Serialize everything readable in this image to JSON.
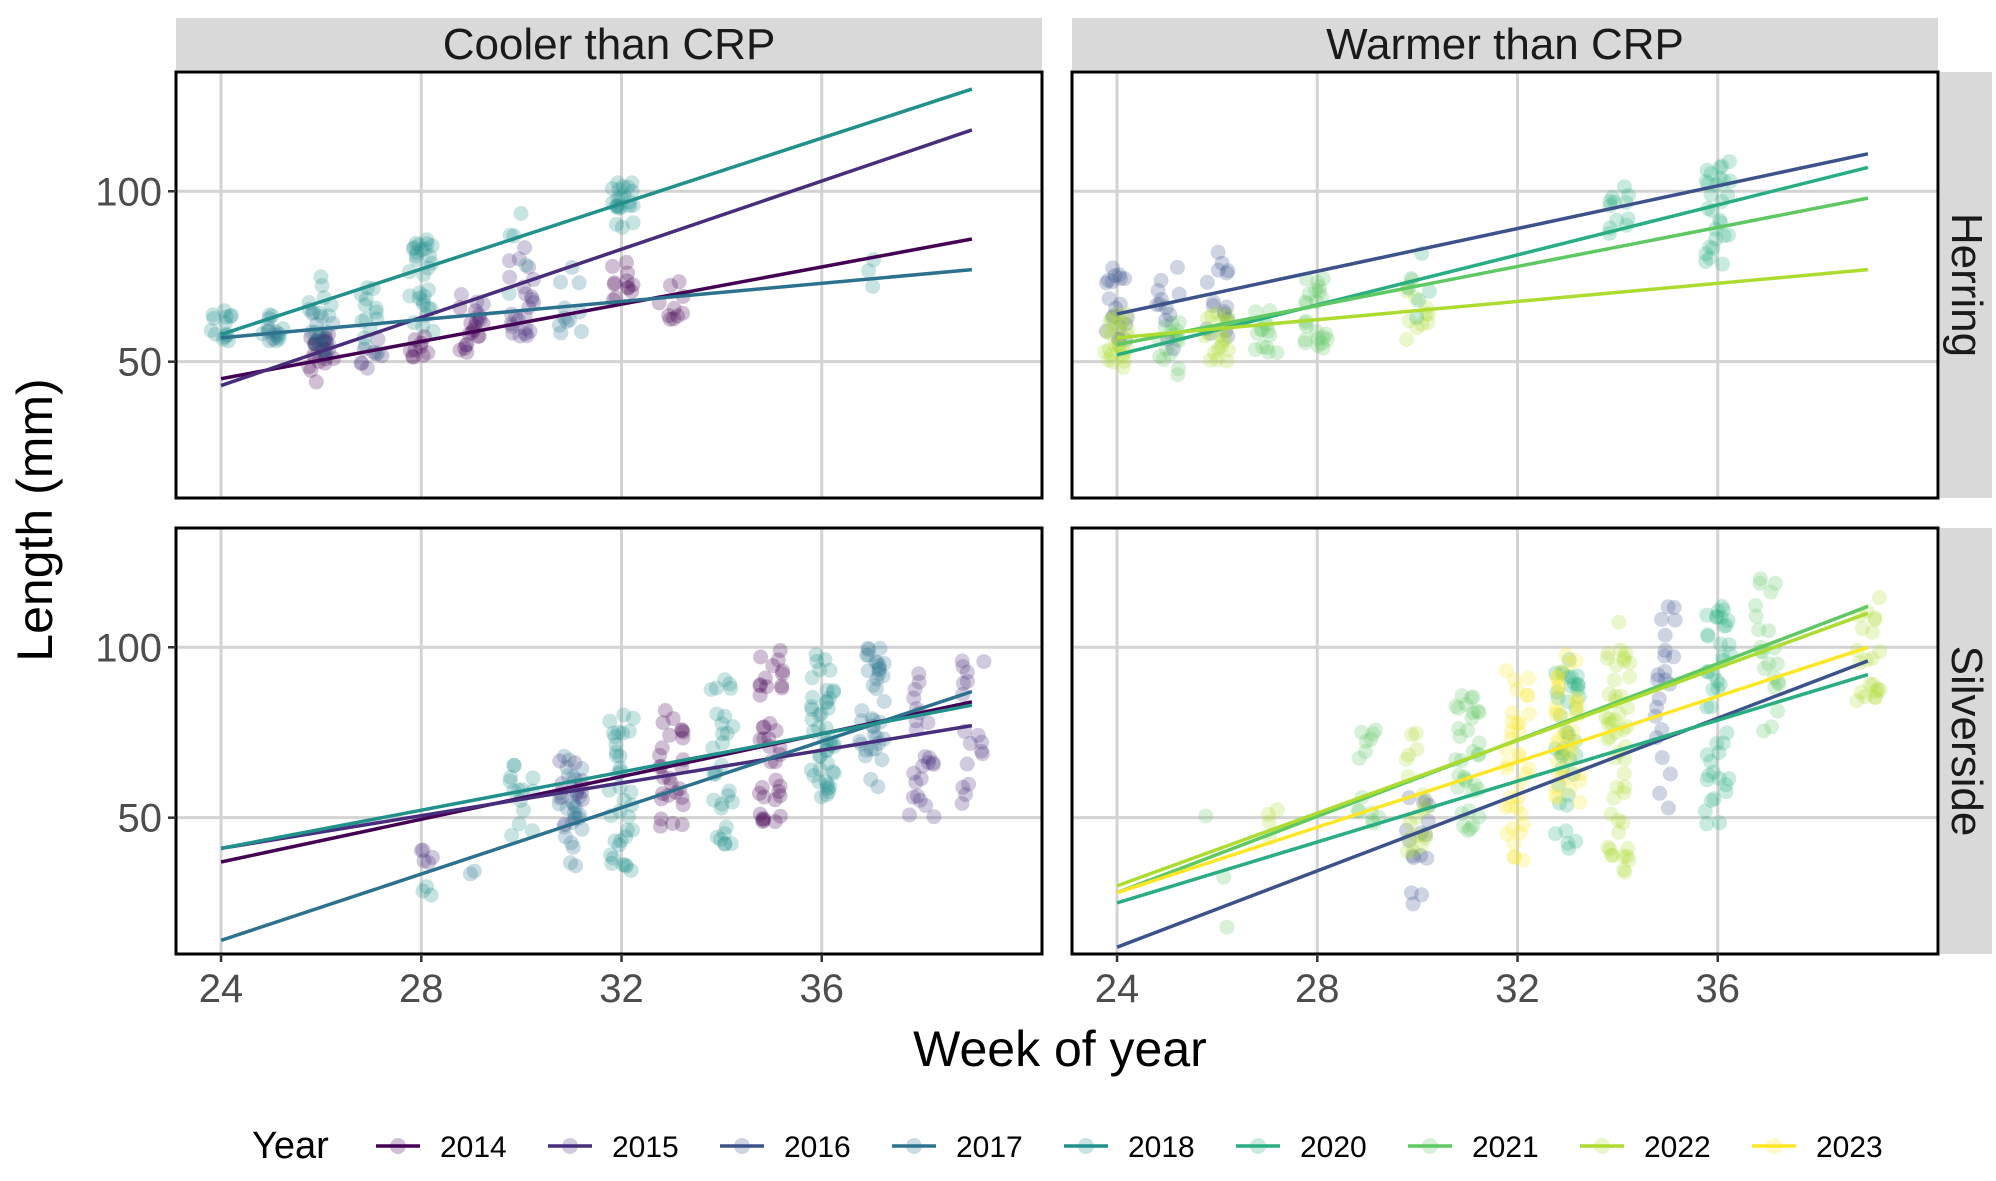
{
  "chart_data": {
    "type": "scatter",
    "xlabel": "Week of year",
    "ylabel": "Length (mm)",
    "legend": {
      "title": "Year",
      "placement": "bottom",
      "entries": [
        {
          "label": "2014",
          "color": "#440154"
        },
        {
          "label": "2015",
          "color": "#472d7b"
        },
        {
          "label": "2016",
          "color": "#3b528b"
        },
        {
          "label": "2017",
          "color": "#2c728e"
        },
        {
          "label": "2018",
          "color": "#21918c"
        },
        {
          "label": "2020",
          "color": "#28ae80"
        },
        {
          "label": "2021",
          "color": "#5ec962"
        },
        {
          "label": "2022",
          "color": "#addc30"
        },
        {
          "label": "2023",
          "color": "#fde725"
        }
      ]
    },
    "facet_columns": [
      "Cooler than CRP",
      "Warmer than CRP"
    ],
    "facet_rows": [
      "Herring",
      "Silverside"
    ],
    "x_ticks": [
      24,
      28,
      32,
      36
    ],
    "y_ticks": [
      50,
      100
    ],
    "xlim": [
      23.1,
      40.4
    ],
    "ylim": [
      10,
      135
    ],
    "grid": true,
    "panels": [
      {
        "column": "Cooler than CRP",
        "row": "Herring",
        "lines": [
          {
            "year": "2014",
            "x": [
              24,
              39
            ],
            "y": [
              45,
              86
            ]
          },
          {
            "year": "2015",
            "x": [
              24,
              39
            ],
            "y": [
              43,
              118
            ]
          },
          {
            "year": "2017",
            "x": [
              24,
              39
            ],
            "y": [
              57,
              77
            ]
          },
          {
            "year": "2018",
            "x": [
              24,
              39
            ],
            "y": [
              58,
              130
            ]
          }
        ],
        "clusters": [
          {
            "year": "2018",
            "week": 24,
            "min": 54,
            "max": 65,
            "n": 14
          },
          {
            "year": "2018",
            "week": 25,
            "min": 55,
            "max": 65,
            "n": 10
          },
          {
            "year": "2017",
            "week": 25,
            "min": 56,
            "max": 63,
            "n": 6
          },
          {
            "year": "2018",
            "week": 26,
            "min": 52,
            "max": 76,
            "n": 14
          },
          {
            "year": "2014",
            "week": 26,
            "min": 44,
            "max": 58,
            "n": 22
          },
          {
            "year": "2017",
            "week": 26,
            "min": 50,
            "max": 66,
            "n": 12
          },
          {
            "year": "2015",
            "week": 27,
            "min": 48,
            "max": 60,
            "n": 8
          },
          {
            "year": "2018",
            "week": 27,
            "min": 52,
            "max": 72,
            "n": 14
          },
          {
            "year": "2018",
            "week": 28,
            "min": 58,
            "max": 86,
            "n": 30
          },
          {
            "year": "2014",
            "week": 28,
            "min": 51,
            "max": 58,
            "n": 10
          },
          {
            "year": "2014",
            "week": 29,
            "min": 51,
            "max": 66,
            "n": 16
          },
          {
            "year": "2015",
            "week": 29,
            "min": 55,
            "max": 70,
            "n": 6
          },
          {
            "year": "2015",
            "week": 30,
            "min": 56,
            "max": 84,
            "n": 24
          },
          {
            "year": "2018",
            "week": 30,
            "min": 66,
            "max": 96,
            "n": 5
          },
          {
            "year": "2017",
            "week": 31,
            "min": 58,
            "max": 68,
            "n": 8
          },
          {
            "year": "2017",
            "week": 31,
            "min": 72,
            "max": 78,
            "n": 3
          },
          {
            "year": "2018",
            "week": 32,
            "min": 89,
            "max": 103,
            "n": 22
          },
          {
            "year": "2014",
            "week": 32,
            "min": 68,
            "max": 80,
            "n": 12
          },
          {
            "year": "2014",
            "week": 33,
            "min": 62,
            "max": 76,
            "n": 10
          },
          {
            "year": "2018",
            "week": 37,
            "min": 72,
            "max": 82,
            "n": 3
          }
        ]
      },
      {
        "column": "Warmer than CRP",
        "row": "Herring",
        "lines": [
          {
            "year": "2016",
            "x": [
              24,
              39
            ],
            "y": [
              64,
              111
            ]
          },
          {
            "year": "2020",
            "x": [
              24,
              39
            ],
            "y": [
              52,
              107
            ]
          },
          {
            "year": "2021",
            "x": [
              24,
              39
            ],
            "y": [
              55,
              98
            ]
          },
          {
            "year": "2022",
            "x": [
              24,
              39
            ],
            "y": [
              57,
              77
            ]
          }
        ],
        "clusters": [
          {
            "year": "2016",
            "week": 24,
            "min": 56,
            "max": 78,
            "n": 20
          },
          {
            "year": "2022",
            "week": 24,
            "min": 48,
            "max": 64,
            "n": 24
          },
          {
            "year": "2021",
            "week": 25,
            "min": 46,
            "max": 62,
            "n": 16
          },
          {
            "year": "2016",
            "week": 25,
            "min": 52,
            "max": 80,
            "n": 12
          },
          {
            "year": "2016",
            "week": 26,
            "min": 56,
            "max": 83,
            "n": 16
          },
          {
            "year": "2022",
            "week": 26,
            "min": 50,
            "max": 66,
            "n": 20
          },
          {
            "year": "2021",
            "week": 27,
            "min": 50,
            "max": 66,
            "n": 14
          },
          {
            "year": "2021",
            "week": 28,
            "min": 54,
            "max": 77,
            "n": 24
          },
          {
            "year": "2022",
            "week": 30,
            "min": 56,
            "max": 76,
            "n": 12
          },
          {
            "year": "2020",
            "week": 30,
            "min": 62,
            "max": 84,
            "n": 6
          },
          {
            "year": "2020",
            "week": 34,
            "min": 87,
            "max": 102,
            "n": 12
          },
          {
            "year": "2020",
            "week": 36,
            "min": 78,
            "max": 110,
            "n": 28
          }
        ]
      },
      {
        "column": "Cooler than CRP",
        "row": "Silverside",
        "lines": [
          {
            "year": "2014",
            "x": [
              24,
              39
            ],
            "y": [
              37,
              84
            ]
          },
          {
            "year": "2015",
            "x": [
              24,
              39
            ],
            "y": [
              41,
              77
            ]
          },
          {
            "year": "2017",
            "x": [
              24,
              39
            ],
            "y": [
              14,
              87
            ]
          },
          {
            "year": "2018",
            "x": [
              24,
              39
            ],
            "y": [
              41,
              83
            ]
          }
        ],
        "clusters": [
          {
            "year": "2015",
            "week": 28,
            "min": 36,
            "max": 52,
            "n": 5
          },
          {
            "year": "2018",
            "week": 28,
            "min": 26,
            "max": 30,
            "n": 3
          },
          {
            "year": "2017",
            "week": 29,
            "min": 32,
            "max": 36,
            "n": 2
          },
          {
            "year": "2018",
            "week": 30,
            "min": 44,
            "max": 66,
            "n": 14
          },
          {
            "year": "2017",
            "week": 31,
            "min": 34,
            "max": 70,
            "n": 30
          },
          {
            "year": "2015",
            "week": 31,
            "min": 48,
            "max": 70,
            "n": 10
          },
          {
            "year": "2018",
            "week": 32,
            "min": 32,
            "max": 82,
            "n": 36
          },
          {
            "year": "2014",
            "week": 33,
            "min": 45,
            "max": 83,
            "n": 28
          },
          {
            "year": "2018",
            "week": 34,
            "min": 42,
            "max": 92,
            "n": 30
          },
          {
            "year": "2014",
            "week": 35,
            "min": 48,
            "max": 100,
            "n": 40
          },
          {
            "year": "2018",
            "week": 36,
            "min": 56,
            "max": 98,
            "n": 46
          },
          {
            "year": "2017",
            "week": 37,
            "min": 58,
            "max": 104,
            "n": 38
          },
          {
            "year": "2015",
            "week": 38,
            "min": 50,
            "max": 96,
            "n": 24
          },
          {
            "year": "2015",
            "week": 39,
            "min": 54,
            "max": 102,
            "n": 18
          }
        ]
      },
      {
        "column": "Warmer than CRP",
        "row": "Silverside",
        "lines": [
          {
            "year": "2016",
            "x": [
              24,
              39
            ],
            "y": [
              12,
              96
            ]
          },
          {
            "year": "2020",
            "x": [
              24,
              39
            ],
            "y": [
              25,
              92
            ]
          },
          {
            "year": "2021",
            "x": [
              24,
              39
            ],
            "y": [
              28,
              112
            ]
          },
          {
            "year": "2022",
            "x": [
              24,
              39
            ],
            "y": [
              30,
              110
            ]
          },
          {
            "year": "2023",
            "x": [
              24,
              39
            ],
            "y": [
              28,
              100
            ]
          }
        ],
        "clusters": [
          {
            "year": "2021",
            "week": 26,
            "min": 16,
            "max": 62,
            "n": 3
          },
          {
            "year": "2022",
            "week": 27,
            "min": 44,
            "max": 62,
            "n": 4
          },
          {
            "year": "2021",
            "week": 29,
            "min": 48,
            "max": 76,
            "n": 14
          },
          {
            "year": "2016",
            "week": 30,
            "min": 24,
            "max": 56,
            "n": 16
          },
          {
            "year": "2022",
            "week": 30,
            "min": 40,
            "max": 76,
            "n": 18
          },
          {
            "year": "2021",
            "week": 31,
            "min": 46,
            "max": 88,
            "n": 34
          },
          {
            "year": "2023",
            "week": 32,
            "min": 36,
            "max": 94,
            "n": 36
          },
          {
            "year": "2020",
            "week": 33,
            "min": 40,
            "max": 100,
            "n": 40
          },
          {
            "year": "2023",
            "week": 33,
            "min": 50,
            "max": 98,
            "n": 40
          },
          {
            "year": "2022",
            "week": 34,
            "min": 32,
            "max": 108,
            "n": 50
          },
          {
            "year": "2016",
            "week": 35,
            "min": 52,
            "max": 112,
            "n": 22
          },
          {
            "year": "2020",
            "week": 36,
            "min": 48,
            "max": 112,
            "n": 44
          },
          {
            "year": "2021",
            "week": 37,
            "min": 74,
            "max": 122,
            "n": 22
          },
          {
            "year": "2022",
            "week": 39,
            "min": 84,
            "max": 116,
            "n": 22
          }
        ]
      }
    ]
  }
}
